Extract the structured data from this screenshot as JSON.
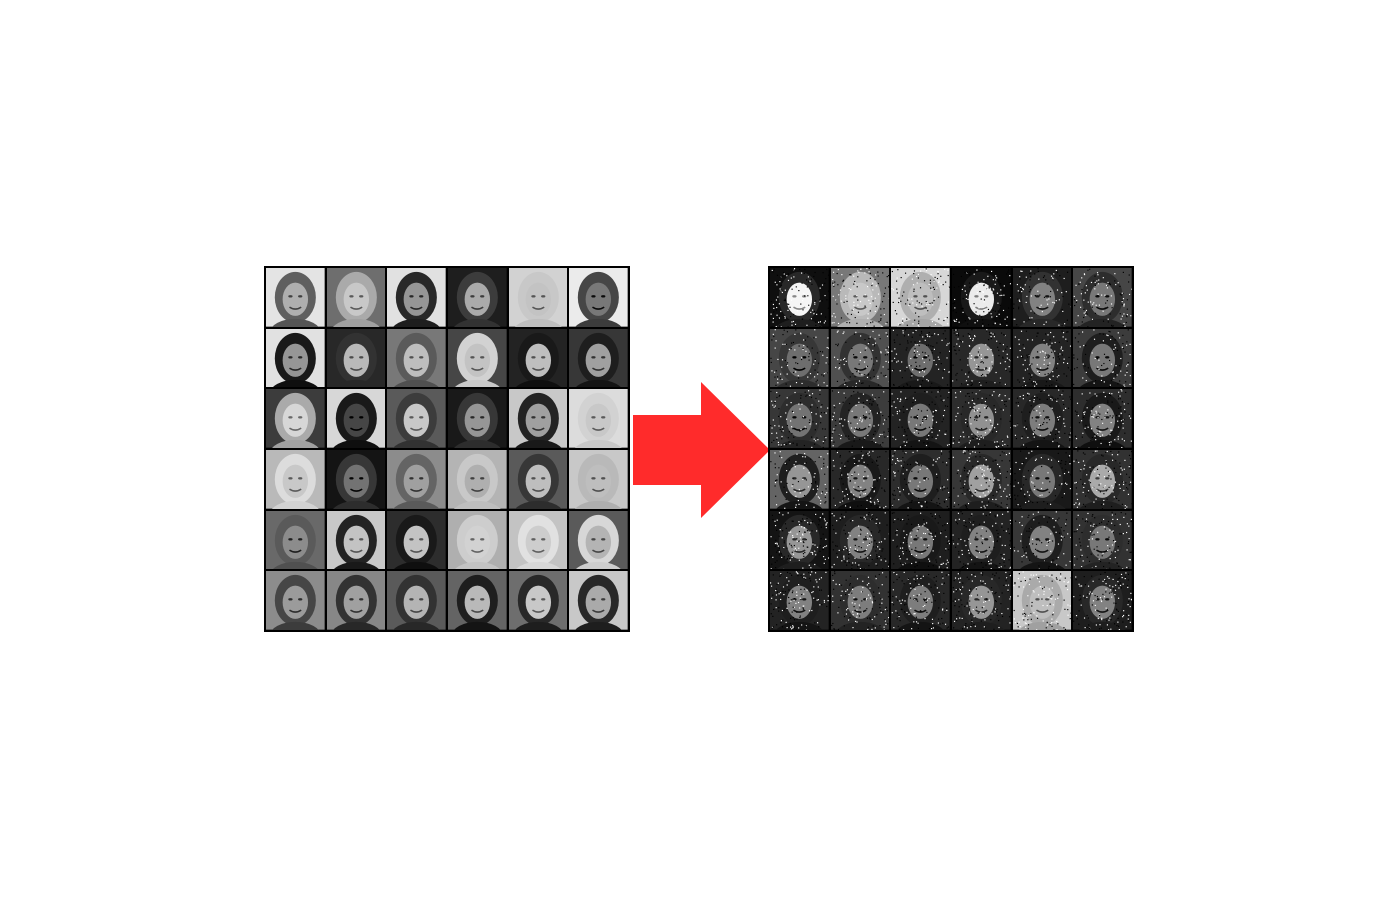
{
  "figure": {
    "left_panel": {
      "rows": 6,
      "cols": 6,
      "style": "clean-grayscale"
    },
    "right_panel": {
      "rows": 6,
      "cols": 6,
      "style": "noisy-grayscale"
    },
    "arrow_color": "#ff2b2b",
    "border_color": "#000000",
    "tiles_original": [
      {
        "bg": 228,
        "skin": 175,
        "hair": 95
      },
      {
        "bg": 110,
        "skin": 200,
        "hair": 170
      },
      {
        "bg": 225,
        "skin": 150,
        "hair": 40
      },
      {
        "bg": 30,
        "skin": 170,
        "hair": 60
      },
      {
        "bg": 210,
        "skin": 195,
        "hair": 200
      },
      {
        "bg": 235,
        "skin": 120,
        "hair": 70
      },
      {
        "bg": 225,
        "skin": 150,
        "hair": 25
      },
      {
        "bg": 40,
        "skin": 185,
        "hair": 50
      },
      {
        "bg": 120,
        "skin": 190,
        "hair": 90
      },
      {
        "bg": 70,
        "skin": 195,
        "hair": 210
      },
      {
        "bg": 35,
        "skin": 190,
        "hair": 25
      },
      {
        "bg": 55,
        "skin": 160,
        "hair": 30
      },
      {
        "bg": 60,
        "skin": 215,
        "hair": 170
      },
      {
        "bg": 215,
        "skin": 70,
        "hair": 25
      },
      {
        "bg": 90,
        "skin": 200,
        "hair": 60
      },
      {
        "bg": 25,
        "skin": 150,
        "hair": 55
      },
      {
        "bg": 200,
        "skin": 160,
        "hair": 35
      },
      {
        "bg": 220,
        "skin": 200,
        "hair": 210
      },
      {
        "bg": 185,
        "skin": 200,
        "hair": 220
      },
      {
        "bg": 20,
        "skin": 115,
        "hair": 55
      },
      {
        "bg": 140,
        "skin": 160,
        "hair": 100
      },
      {
        "bg": 180,
        "skin": 175,
        "hair": 200
      },
      {
        "bg": 90,
        "skin": 190,
        "hair": 55
      },
      {
        "bg": 200,
        "skin": 190,
        "hair": 185
      },
      {
        "bg": 105,
        "skin": 140,
        "hair": 90
      },
      {
        "bg": 200,
        "skin": 195,
        "hair": 35
      },
      {
        "bg": 45,
        "skin": 195,
        "hair": 25
      },
      {
        "bg": 175,
        "skin": 210,
        "hair": 205
      },
      {
        "bg": 195,
        "skin": 205,
        "hair": 225
      },
      {
        "bg": 90,
        "skin": 180,
        "hair": 215
      },
      {
        "bg": 140,
        "skin": 155,
        "hair": 70
      },
      {
        "bg": 135,
        "skin": 160,
        "hair": 50
      },
      {
        "bg": 90,
        "skin": 180,
        "hair": 50
      },
      {
        "bg": 100,
        "skin": 185,
        "hair": 30
      },
      {
        "bg": 110,
        "skin": 200,
        "hair": 40
      },
      {
        "bg": 200,
        "skin": 170,
        "hair": 40
      }
    ],
    "tiles_noisy": [
      {
        "bg": 15,
        "skin": 245,
        "hair": 40,
        "noise": 0.55
      },
      {
        "bg": 120,
        "skin": 200,
        "hair": 185,
        "noise": 0.45
      },
      {
        "bg": 215,
        "skin": 190,
        "hair": 175,
        "noise": 0.45
      },
      {
        "bg": 10,
        "skin": 235,
        "hair": 25,
        "noise": 0.5
      },
      {
        "bg": 30,
        "skin": 130,
        "hair": 50,
        "noise": 0.35
      },
      {
        "bg": 70,
        "skin": 120,
        "hair": 45,
        "noise": 0.45
      },
      {
        "bg": 70,
        "skin": 110,
        "hair": 55,
        "noise": 0.4
      },
      {
        "bg": 80,
        "skin": 120,
        "hair": 50,
        "noise": 0.4
      },
      {
        "bg": 35,
        "skin": 110,
        "hair": 35,
        "noise": 0.5
      },
      {
        "bg": 40,
        "skin": 150,
        "hair": 40,
        "noise": 0.55
      },
      {
        "bg": 35,
        "skin": 130,
        "hair": 35,
        "noise": 0.5
      },
      {
        "bg": 60,
        "skin": 120,
        "hair": 30,
        "noise": 0.35
      },
      {
        "bg": 55,
        "skin": 115,
        "hair": 45,
        "noise": 0.45
      },
      {
        "bg": 60,
        "skin": 120,
        "hair": 35,
        "noise": 0.45
      },
      {
        "bg": 35,
        "skin": 120,
        "hair": 30,
        "noise": 0.45
      },
      {
        "bg": 45,
        "skin": 145,
        "hair": 40,
        "noise": 0.5
      },
      {
        "bg": 40,
        "skin": 125,
        "hair": 30,
        "noise": 0.45
      },
      {
        "bg": 45,
        "skin": 130,
        "hair": 25,
        "noise": 0.5
      },
      {
        "bg": 100,
        "skin": 150,
        "hair": 30,
        "noise": 0.35
      },
      {
        "bg": 40,
        "skin": 130,
        "hair": 25,
        "noise": 0.5
      },
      {
        "bg": 45,
        "skin": 120,
        "hair": 30,
        "noise": 0.45
      },
      {
        "bg": 55,
        "skin": 160,
        "hair": 40,
        "noise": 0.55
      },
      {
        "bg": 25,
        "skin": 120,
        "hair": 40,
        "noise": 0.35
      },
      {
        "bg": 50,
        "skin": 170,
        "hair": 40,
        "noise": 0.5
      },
      {
        "bg": 20,
        "skin": 150,
        "hair": 40,
        "noise": 0.6
      },
      {
        "bg": 30,
        "skin": 130,
        "hair": 40,
        "noise": 0.55
      },
      {
        "bg": 30,
        "skin": 120,
        "hair": 25,
        "noise": 0.5
      },
      {
        "bg": 35,
        "skin": 130,
        "hair": 30,
        "noise": 0.5
      },
      {
        "bg": 55,
        "skin": 130,
        "hair": 30,
        "noise": 0.35
      },
      {
        "bg": 50,
        "skin": 120,
        "hair": 45,
        "noise": 0.45
      },
      {
        "bg": 35,
        "skin": 130,
        "hair": 30,
        "noise": 0.55
      },
      {
        "bg": 50,
        "skin": 125,
        "hair": 45,
        "noise": 0.45
      },
      {
        "bg": 40,
        "skin": 125,
        "hair": 30,
        "noise": 0.5
      },
      {
        "bg": 35,
        "skin": 150,
        "hair": 40,
        "noise": 0.55
      },
      {
        "bg": 200,
        "skin": 190,
        "hair": 170,
        "noise": 0.45
      },
      {
        "bg": 30,
        "skin": 130,
        "hair": 40,
        "noise": 0.55
      }
    ]
  }
}
